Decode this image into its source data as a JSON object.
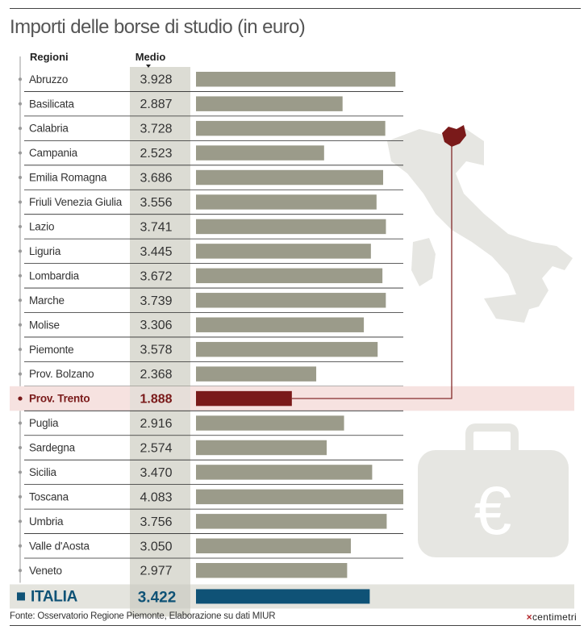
{
  "title": "Importi delle borse di studio (in euro)",
  "footer": {
    "source": "Fonte: Osservatorio Regione Piemonte, Elaborazione su dati MIUR",
    "brand": "centimetri"
  },
  "colors": {
    "bar": "#9b9b8a",
    "highlight": "#7a1a1a",
    "highlight_row": "#f6e2e0",
    "total": "#0f5276",
    "value_column": "#dcdcd4",
    "map": "#e6e6e2",
    "icon": "#e6e6e2"
  },
  "icons": {
    "map": "italy-map-icon",
    "briefcase": "euro-briefcase-icon"
  },
  "chart_data": {
    "type": "bar",
    "orientation": "horizontal",
    "title": "Importi delle borse di studio (in euro)",
    "category_header": "Regioni",
    "value_header": "Medio",
    "categories": [
      "Abruzzo",
      "Basilicata",
      "Calabria",
      "Campania",
      "Emilia Romagna",
      "Friuli Venezia Giulia",
      "Lazio",
      "Liguria",
      "Lombardia",
      "Marche",
      "Molise",
      "Piemonte",
      "Prov. Bolzano",
      "Prov. Trento",
      "Puglia",
      "Sardegna",
      "Sicilia",
      "Toscana",
      "Umbria",
      "Valle d'Aosta",
      "Veneto"
    ],
    "values": [
      3928,
      2887,
      3728,
      2523,
      3686,
      3556,
      3741,
      3445,
      3672,
      3739,
      3306,
      3578,
      2368,
      1888,
      2916,
      2574,
      3470,
      4083,
      3756,
      3050,
      2977
    ],
    "value_labels": [
      "3.928",
      "2.887",
      "3.728",
      "2.523",
      "3.686",
      "3.556",
      "3.741",
      "3.445",
      "3.672",
      "3.739",
      "3.306",
      "3.578",
      "2.368",
      "1.888",
      "2.916",
      "2.574",
      "3.470",
      "4.083",
      "3.756",
      "3.050",
      "2.977"
    ],
    "highlighted": "Prov. Trento",
    "total": {
      "label": "ITALIA",
      "value": 3422,
      "value_label": "3.422"
    },
    "xlim": [
      0,
      4083
    ]
  }
}
